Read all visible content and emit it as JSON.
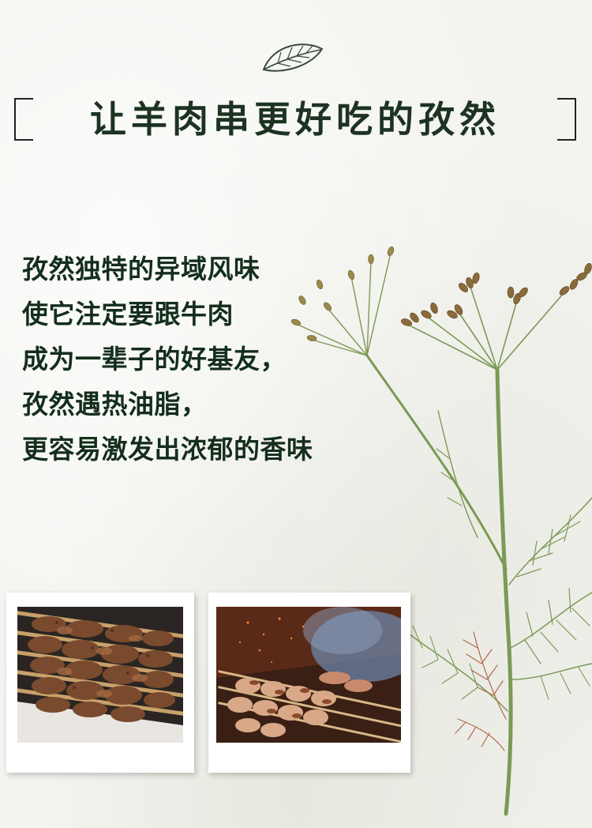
{
  "header": {
    "title": "让羊肉串更好吃的孜然",
    "icon": "leaf-icon"
  },
  "description": {
    "lines": [
      "孜然独特的异域风味",
      "使它注定要跟牛肉",
      "成为一辈子的好基友，",
      "孜然遇热油脂，",
      "更容易激发出浓郁的香味"
    ]
  },
  "photos": [
    {
      "subject": "grilled-lamb-skewers-on-plate"
    },
    {
      "subject": "lamb-skewers-on-grill-with-smoke"
    }
  ],
  "colors": {
    "title": "#1d3322",
    "text": "#142e1c",
    "plant_stem": "#6f8f4a",
    "seed": "#8a6a3a"
  }
}
